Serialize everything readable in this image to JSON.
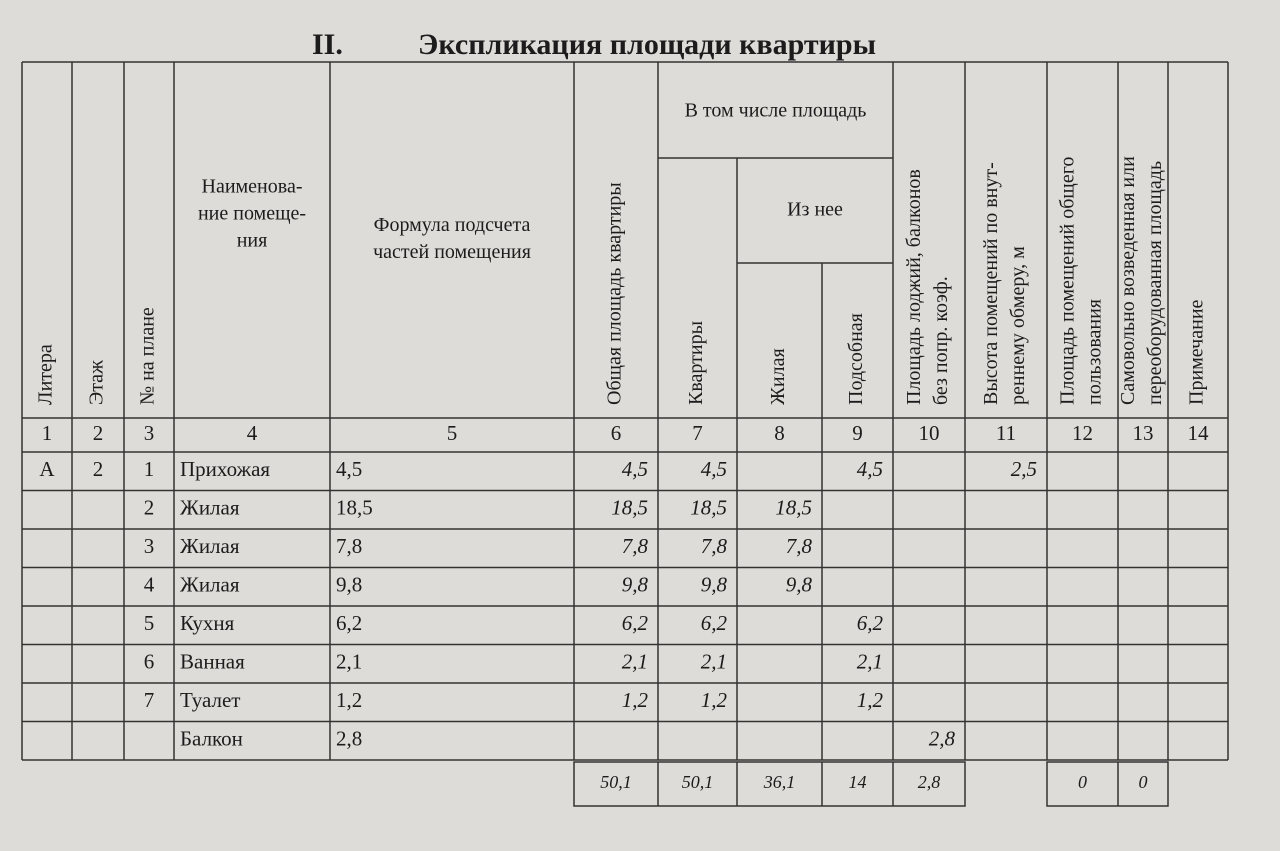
{
  "title": {
    "number": "II.",
    "text": "Экспликация площади квартиры"
  },
  "header": {
    "columns": [
      {
        "lines": [
          "Литера"
        ]
      },
      {
        "lines": [
          "Этаж"
        ]
      },
      {
        "lines": [
          "№ на плане"
        ]
      },
      {
        "lines": [
          "Наименова-",
          "ние помеще-",
          "ния"
        ]
      },
      {
        "lines": [
          "Формула подсчета",
          "частей помещения"
        ]
      },
      {
        "lines": [
          "Общая площадь квартиры"
        ]
      },
      {
        "lines": [
          "Квартиры"
        ]
      },
      {
        "lines": [
          "Жилая"
        ]
      },
      {
        "lines": [
          "Подсобная"
        ]
      },
      {
        "lines": [
          "Площадь лоджий, балконов",
          "без попр. коэф."
        ]
      },
      {
        "lines": [
          "Высота помещений по внут-",
          "реннему обмеру, м"
        ]
      },
      {
        "lines": [
          "Площадь помещений общего",
          "пользования"
        ]
      },
      {
        "lines": [
          "Самовольно возведенная или",
          "переоборудованная площадь"
        ]
      },
      {
        "lines": [
          "Примечание"
        ]
      }
    ],
    "group": "В том числе площадь",
    "subgroup": "Из нее",
    "numbers": [
      1,
      2,
      3,
      4,
      5,
      6,
      7,
      8,
      9,
      10,
      11,
      12,
      13,
      14
    ]
  },
  "table": {
    "rows": [
      [
        "А",
        "2",
        "1",
        "Прихожая",
        "4,5",
        "4,5",
        "4,5",
        null,
        "4,5",
        null,
        "2,5",
        null,
        null,
        null
      ],
      [
        null,
        null,
        "2",
        "Жилая",
        "18,5",
        "18,5",
        "18,5",
        "18,5",
        null,
        null,
        null,
        null,
        null,
        null
      ],
      [
        null,
        null,
        "3",
        "Жилая",
        "7,8",
        "7,8",
        "7,8",
        "7,8",
        null,
        null,
        null,
        null,
        null,
        null
      ],
      [
        null,
        null,
        "4",
        "Жилая",
        "9,8",
        "9,8",
        "9,8",
        "9,8",
        null,
        null,
        null,
        null,
        null,
        null
      ],
      [
        null,
        null,
        "5",
        "Кухня",
        "6,2",
        "6,2",
        "6,2",
        null,
        "6,2",
        null,
        null,
        null,
        null,
        null
      ],
      [
        null,
        null,
        "6",
        "Ванная",
        "2,1",
        "2,1",
        "2,1",
        null,
        "2,1",
        null,
        null,
        null,
        null,
        null
      ],
      [
        null,
        null,
        "7",
        "Туалет",
        "1,2",
        "1,2",
        "1,2",
        null,
        "1,2",
        null,
        null,
        null,
        null,
        null
      ],
      [
        null,
        null,
        null,
        "Балкон",
        "2,8",
        null,
        null,
        null,
        null,
        "2,8",
        null,
        null,
        null,
        null
      ]
    ],
    "totals": [
      null,
      null,
      null,
      null,
      null,
      "50,1",
      "50,1",
      "36,1",
      "14",
      "2,8",
      null,
      "0",
      "0",
      null
    ]
  }
}
